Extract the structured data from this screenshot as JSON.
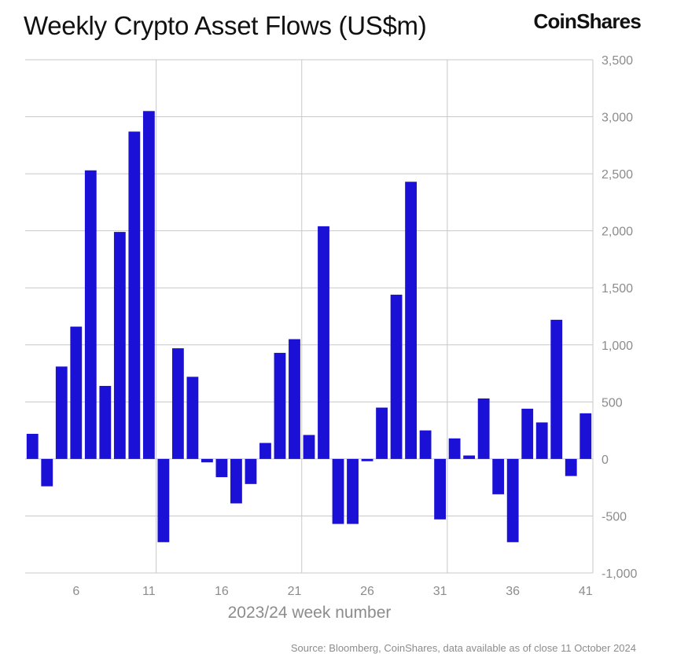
{
  "brand": "CoinShares",
  "chart_data": {
    "type": "bar",
    "title": "Weekly Crypto Asset Flows (US$m)",
    "xlabel": "2023/24 week number",
    "ylabel": "",
    "x_ticks": [
      "6",
      "11",
      "16",
      "21",
      "26",
      "31",
      "36",
      "41"
    ],
    "y_ticks": [
      "3,500",
      "3,000",
      "2,500",
      "2,000",
      "1,500",
      "1,000",
      "500",
      "0",
      "-500",
      "-1,000"
    ],
    "ylim": [
      -1000,
      3500
    ],
    "grid": true,
    "color": "#1a10d6",
    "categories": [
      3,
      4,
      5,
      6,
      7,
      8,
      9,
      10,
      11,
      12,
      13,
      14,
      15,
      16,
      17,
      18,
      19,
      20,
      21,
      22,
      23,
      24,
      25,
      26,
      27,
      28,
      29,
      30,
      31,
      32,
      33,
      34,
      35,
      36,
      37,
      38,
      39,
      40,
      41
    ],
    "values": [
      220,
      -240,
      810,
      1160,
      2530,
      640,
      1990,
      2870,
      3050,
      -730,
      970,
      720,
      -30,
      -160,
      -390,
      -220,
      140,
      930,
      1050,
      210,
      2040,
      -570,
      -570,
      -20,
      450,
      1440,
      2430,
      250,
      -530,
      180,
      30,
      530,
      -310,
      -730,
      440,
      320,
      1220,
      -150,
      400
    ]
  },
  "source": "Source: Bloomberg, CoinShares, data available as of close 11 October 2024"
}
